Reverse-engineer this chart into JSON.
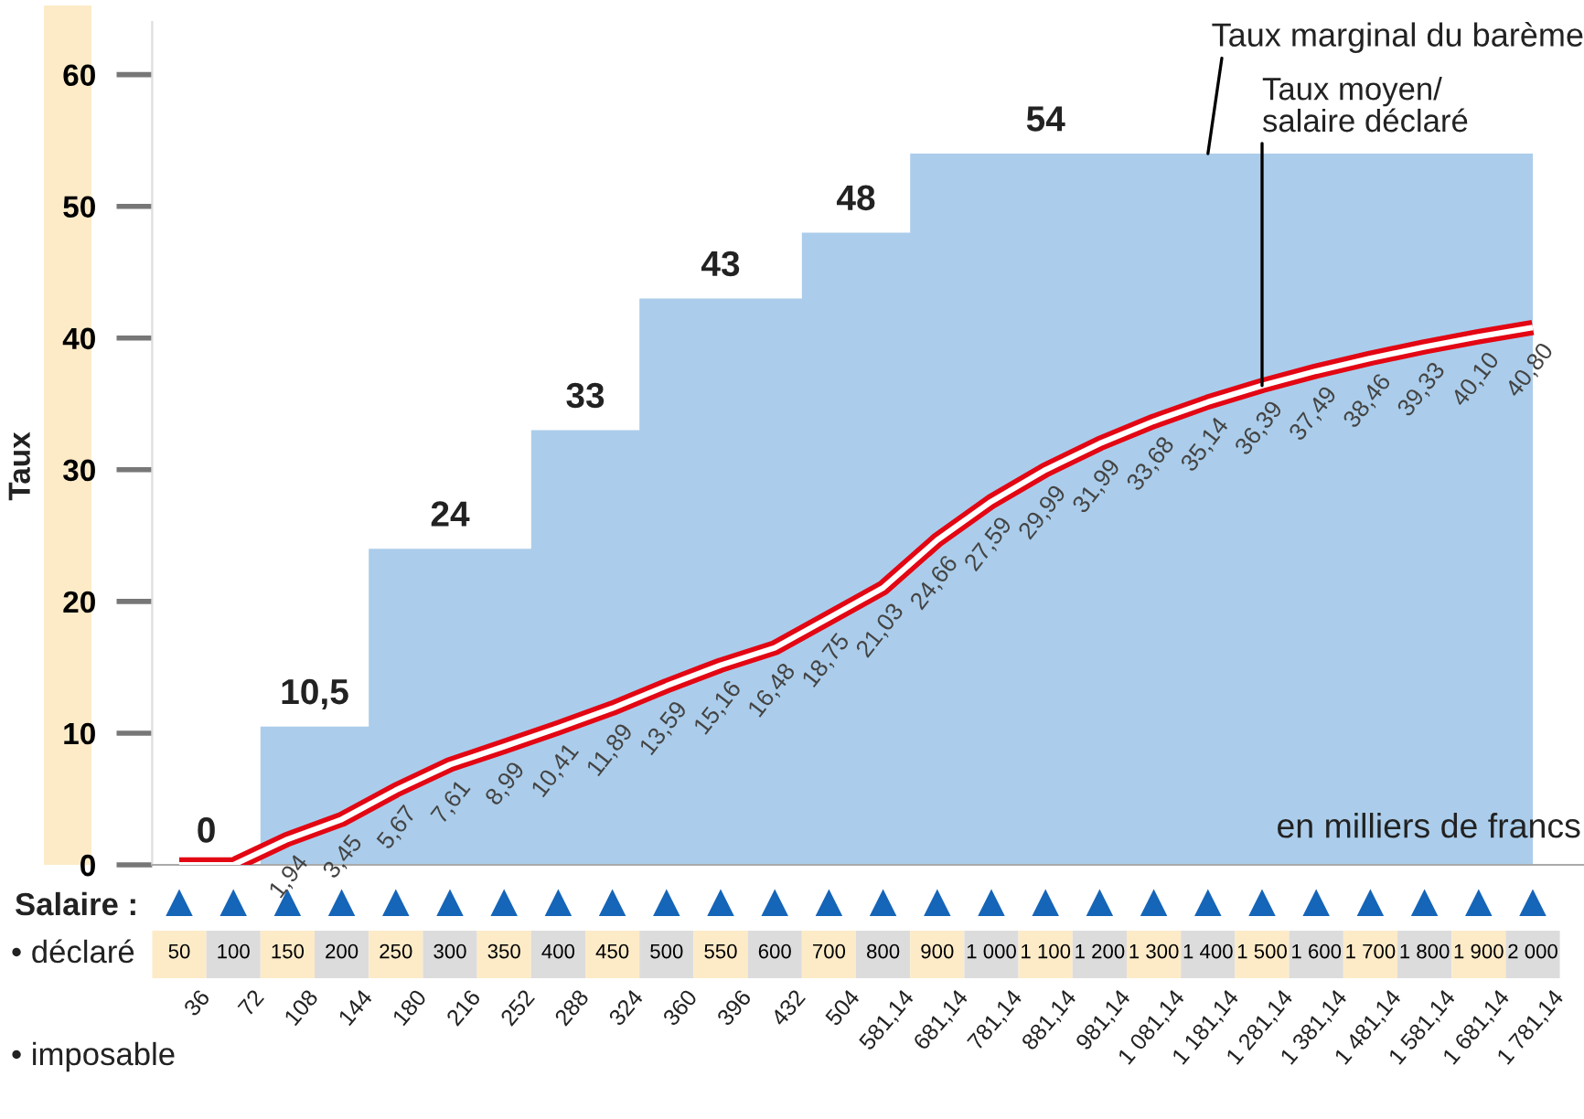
{
  "chart_data": {
    "type": "area",
    "categories": [
      "50",
      "100",
      "150",
      "200",
      "250",
      "300",
      "350",
      "400",
      "450",
      "500",
      "550",
      "600",
      "700",
      "800",
      "900",
      "1 000",
      "1 100",
      "1 200",
      "1 300",
      "1 400",
      "1 500",
      "1 600",
      "1 700",
      "1 800",
      "1 900",
      "2 000"
    ],
    "ylabel": "Taux",
    "ylim": [
      0,
      64
    ],
    "yticks": [
      0,
      10,
      20,
      30,
      40,
      50,
      60
    ],
    "series": [
      {
        "name": "Taux marginal du barème",
        "color": "#abcdeb",
        "values": [
          0,
          0,
          10.5,
          10.5,
          24,
          24,
          24,
          33,
          33,
          43,
          43,
          43,
          48,
          48,
          54,
          54,
          54,
          54,
          54,
          54,
          54,
          54,
          54,
          54,
          54,
          54
        ],
        "value_labels": [
          "0",
          null,
          "10,5",
          null,
          null,
          "24",
          null,
          "33",
          null,
          null,
          "43",
          null,
          "48",
          null,
          null,
          null,
          "54",
          null,
          null,
          null,
          null,
          null,
          null,
          null,
          null,
          null
        ]
      },
      {
        "name": "Taux moyen/\nsalaire déclaré",
        "type": "line",
        "color": "#e30613",
        "x": [
          "50",
          "100",
          "150",
          "200",
          "250",
          "300",
          "350",
          "400",
          "450",
          "500",
          "550",
          "600",
          "700",
          "800",
          "900",
          "1 000",
          "1 100",
          "1 200",
          "1 300",
          "1 400",
          "1 500",
          "1 600",
          "1 700",
          "1 800",
          "1 900",
          "2 000"
        ],
        "values": [
          0,
          0,
          1.94,
          3.45,
          5.67,
          7.61,
          8.99,
          10.41,
          11.89,
          13.59,
          15.16,
          16.48,
          18.75,
          21.03,
          24.66,
          27.59,
          29.99,
          31.99,
          33.68,
          35.14,
          36.39,
          37.49,
          38.46,
          39.33,
          40.1,
          40.8
        ],
        "value_labels": [
          null,
          null,
          "1,94",
          "3,45",
          "5,67",
          "7,61",
          "8,99",
          "10,41",
          "11,89",
          "13,59",
          "15,16",
          "16,48",
          "18,75",
          "21,03",
          "24,66",
          "27,59",
          "29,99",
          "31,99",
          "33,68",
          "35,14",
          "36,39",
          "37,49",
          "38,46",
          "39,33",
          "40,10",
          "40,80"
        ]
      }
    ],
    "legend": false,
    "grid": false,
    "marker": "none",
    "annotations": [
      "en milliers de francs",
      "Salaire :",
      "• déclaré",
      "• imposable",
      "36",
      "72",
      "108",
      "144",
      "180",
      "216",
      "252",
      "288",
      "324",
      "360",
      "396",
      "432",
      "504",
      "581,14",
      "681,14",
      "781,14",
      "881,14",
      "981,14",
      "1 081,14",
      "1 181,14",
      "1 281,14",
      "1 381,14",
      "1 481,14",
      "1 581,14",
      "1 681,14",
      "1 781,14"
    ]
  }
}
